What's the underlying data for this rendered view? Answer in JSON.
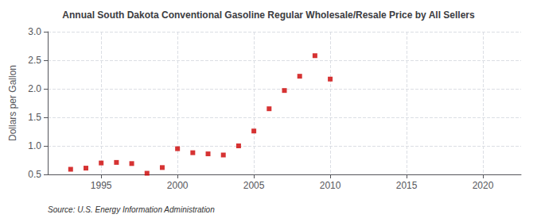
{
  "chart_data": {
    "type": "scatter",
    "title": "Annual South Dakota Conventional Gasoline Regular Wholesale/Resale Price by All Sellers",
    "ylabel": "Dollars per Gallon",
    "annotations": [
      "Source: U.S. Energy Information Administration"
    ],
    "x": [
      1993,
      1994,
      1995,
      1996,
      1997,
      1998,
      1999,
      2000,
      2001,
      2002,
      2003,
      2004,
      2005,
      2006,
      2007,
      2008,
      2009,
      2010
    ],
    "values": [
      0.59,
      0.61,
      0.7,
      0.71,
      0.69,
      0.52,
      0.62,
      0.95,
      0.88,
      0.86,
      0.84,
      1.0,
      1.26,
      1.65,
      1.97,
      2.22,
      2.58,
      2.17
    ],
    "color": "#cc0000",
    "marker": "square",
    "xlim": [
      1991.5,
      2022.5
    ],
    "ylim": [
      0.5,
      3.0
    ],
    "xticks": [
      1995,
      2000,
      2005,
      2010,
      2015,
      2020
    ],
    "yticks": [
      0.5,
      {
        "value": 1.0,
        "label": "1.0"
      },
      1.5,
      {
        "value": 2.0,
        "label": "2.0"
      },
      2.5,
      {
        "value": 3.0,
        "label": "3.0"
      }
    ],
    "grid": true
  }
}
